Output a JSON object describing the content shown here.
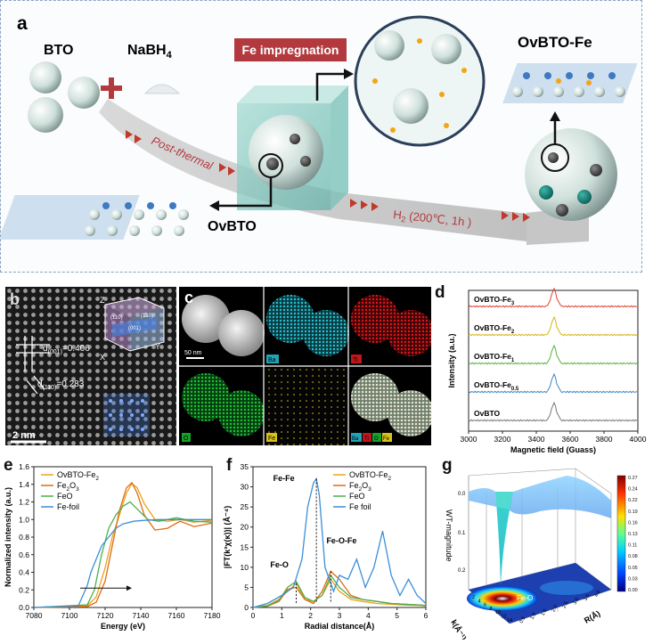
{
  "panel_a": {
    "label": "a",
    "bto": "BTO",
    "nabh4": "NaBH",
    "nabh4_sub": "4",
    "fe_impregnation": "Fe impregnation",
    "ovbto_fe": "OvBTO-Fe",
    "post_thermal": "Post-thermal",
    "h2_condition": "H",
    "h2_sub": "2",
    "h2_rest": " (200℃, 1h )",
    "ovbto": "OvBTO",
    "colors": {
      "banner": "#b23a3f",
      "arrow_band": "#c9c9c9",
      "chevron": "#c0392b"
    }
  },
  "panel_b": {
    "label": "b",
    "d001": "d",
    "d001_sub": "(001)",
    "d001_val": "=0.406",
    "d110": "d",
    "d110_sub": "(110)",
    "d110_val": "=0.283",
    "scale": "2 nm",
    "axes": {
      "z": "Z",
      "x": "X",
      "y": "Y"
    },
    "planes": [
      "(110)",
      "(1̄10)",
      "(001)"
    ]
  },
  "panel_c": {
    "label": "c",
    "scale": "50 nm",
    "maps": [
      "Ba",
      "Ti",
      "O",
      "Fe"
    ],
    "legend": [
      "Ba",
      "Ti",
      "O",
      "Fe"
    ],
    "colors": {
      "Ba": "#22a3b3",
      "Ti": "#c0161c",
      "O": "#17a02a",
      "Fe": "#d8c21a"
    }
  },
  "panel_d": {
    "label": "d",
    "chart_data": {
      "type": "line",
      "xlabel": "Magnetic field (Guass)",
      "ylabel": "Intensity (a.u.)",
      "xlim": [
        3000,
        4000
      ],
      "xticks": [
        "3000",
        "3200",
        "3400",
        "3600",
        "3800",
        "4000"
      ],
      "series": [
        {
          "name": "OvBTO-Fe",
          "sub": "3",
          "color": "#e0402c"
        },
        {
          "name": "OvBTO-Fe",
          "sub": "2",
          "color": "#d9b312"
        },
        {
          "name": "OvBTO-Fe",
          "sub": "1",
          "color": "#55b33a"
        },
        {
          "name": "OvBTO-Fe",
          "sub": "0.5",
          "color": "#3d86c8"
        },
        {
          "name": "OvBTO",
          "sub": "",
          "color": "#777777"
        }
      ],
      "signal_center": 3505
    }
  },
  "panel_e": {
    "label": "e",
    "chart_data": {
      "type": "line",
      "xlabel": "Energy (eV)",
      "ylabel": "Normalized intensity (a.u.)",
      "xlim": [
        7080,
        7180
      ],
      "ylim": [
        0,
        1.6
      ],
      "xticks": [
        "7080",
        "7100",
        "7120",
        "7140",
        "7160",
        "7180"
      ],
      "yticks": [
        "0.0",
        "0.2",
        "0.4",
        "0.6",
        "0.8",
        "1.0",
        "1.2",
        "1.4",
        "1.6"
      ],
      "series": [
        {
          "name": "OvBTO-Fe",
          "sub": "2",
          "color": "#e8a41c",
          "x": [
            7080,
            7110,
            7115,
            7120,
            7124,
            7128,
            7132,
            7135,
            7138,
            7142,
            7148,
            7155,
            7162,
            7170,
            7180
          ],
          "y": [
            0,
            0.02,
            0.12,
            0.45,
            0.8,
            1.05,
            1.3,
            1.41,
            1.36,
            1.18,
            1.0,
            0.98,
            1.0,
            0.97,
            0.99
          ]
        },
        {
          "name": "Fe",
          "sub": "2",
          "tail": "O",
          "tail_sub": "3",
          "color": "#e06a10",
          "x": [
            7080,
            7110,
            7115,
            7120,
            7124,
            7128,
            7132,
            7135,
            7138,
            7142,
            7148,
            7155,
            7162,
            7170,
            7180
          ],
          "y": [
            0,
            0.01,
            0.06,
            0.3,
            0.7,
            1.1,
            1.36,
            1.42,
            1.3,
            1.05,
            0.88,
            0.9,
            0.98,
            0.92,
            0.96
          ]
        },
        {
          "name": "FeO",
          "sub": "",
          "color": "#4caf50",
          "x": [
            7080,
            7110,
            7114,
            7118,
            7122,
            7126,
            7130,
            7134,
            7138,
            7144,
            7150,
            7160,
            7170,
            7180
          ],
          "y": [
            0,
            0.03,
            0.2,
            0.6,
            0.9,
            1.05,
            1.15,
            1.2,
            1.12,
            1.0,
            0.98,
            1.02,
            0.98,
            0.97
          ]
        },
        {
          "name": "Fe-foil",
          "sub": "",
          "color": "#3b8fd9",
          "x": [
            7080,
            7105,
            7110,
            7112,
            7115,
            7118,
            7122,
            7126,
            7130,
            7136,
            7142,
            7150,
            7160,
            7170,
            7180
          ],
          "y": [
            0,
            0.02,
            0.25,
            0.4,
            0.55,
            0.7,
            0.8,
            0.9,
            0.95,
            0.98,
            0.99,
            1.0,
            1.0,
            1.0,
            1.0
          ]
        }
      ]
    }
  },
  "panel_f": {
    "label": "f",
    "chart_data": {
      "type": "line",
      "xlabel": "Radial distance(Å)",
      "ylabel": "|FT(k³χ(κ))| (Å⁻⁴)",
      "xlim": [
        0,
        6
      ],
      "ylim": [
        0,
        35
      ],
      "xticks": [
        "0",
        "1",
        "2",
        "3",
        "4",
        "5",
        "6"
      ],
      "yticks": [
        "0",
        "5",
        "10",
        "15",
        "20",
        "25",
        "30",
        "35"
      ],
      "annotations": [
        "Fe-Fe",
        "Fe-O-Fe",
        "Fe-O"
      ],
      "series": [
        {
          "name": "OvBTO-Fe",
          "sub": "2",
          "color": "#e8a41c",
          "x": [
            0,
            0.5,
            0.9,
            1.2,
            1.5,
            1.8,
            2.1,
            2.4,
            2.7,
            3.0,
            3.4,
            3.8,
            4.3,
            4.8,
            5.3,
            5.8,
            6
          ],
          "y": [
            0,
            0.5,
            2,
            4,
            6,
            2,
            1.5,
            3,
            7,
            4,
            2,
            1.5,
            1,
            0.8,
            0.6,
            0.5,
            0.4
          ]
        },
        {
          "name": "Fe",
          "sub": "2",
          "tail": "O",
          "tail_sub": "3",
          "color": "#e06a10",
          "x": [
            0,
            0.5,
            0.9,
            1.2,
            1.5,
            1.8,
            2.1,
            2.4,
            2.7,
            3.0,
            3.4,
            3.8,
            4.3,
            4.8,
            5.3,
            5.8,
            6
          ],
          "y": [
            0,
            0.3,
            1.5,
            4.5,
            5,
            2,
            1,
            4,
            9,
            7,
            3,
            2,
            1.5,
            1,
            0.8,
            0.6,
            0.5
          ]
        },
        {
          "name": "FeO",
          "sub": "",
          "color": "#4caf50",
          "x": [
            0,
            0.5,
            0.9,
            1.2,
            1.5,
            1.8,
            2.1,
            2.4,
            2.7,
            3.0,
            3.4,
            3.8,
            4.3,
            4.8,
            5.3,
            5.8,
            6
          ],
          "y": [
            0,
            0.4,
            1.8,
            5,
            6.5,
            2.5,
            1.5,
            3,
            8,
            5,
            2.5,
            2,
            1.5,
            1,
            0.8,
            0.6,
            0.4
          ]
        },
        {
          "name": "Fe foil",
          "sub": "",
          "color": "#3b8fd9",
          "x": [
            0,
            0.5,
            1.0,
            1.4,
            1.7,
            1.9,
            2.1,
            2.2,
            2.3,
            2.5,
            2.8,
            3.0,
            3.3,
            3.6,
            3.9,
            4.2,
            4.5,
            4.8,
            5.1,
            5.4,
            5.7,
            6
          ],
          "y": [
            0,
            1,
            3,
            5,
            12,
            25,
            31,
            32,
            28,
            10,
            4,
            8,
            7,
            12,
            5,
            10,
            19,
            8,
            3,
            7,
            3,
            1
          ]
        }
      ]
    }
  },
  "panel_g": {
    "label": "g",
    "zlabel": "WT-magnitude",
    "xlabel": "k(Å⁻¹)",
    "ylabel": "R(Å)",
    "peak": "Fe-O",
    "zticks": [
      "0.0",
      "0.1",
      "0.2"
    ],
    "kticks": [
      "2",
      "4",
      "6",
      "8",
      "10",
      "12",
      "14"
    ],
    "rticks": [
      "0.5",
      "1.0",
      "1.5",
      "2.0",
      "2.5",
      "3.0",
      "3.5",
      "4.0"
    ],
    "colorbar": [
      "0.27",
      "0.24",
      "0.22",
      "0.19",
      "0.16",
      "0.13",
      "0.11",
      "0.08",
      "0.05",
      "0.03",
      "0.00"
    ]
  }
}
